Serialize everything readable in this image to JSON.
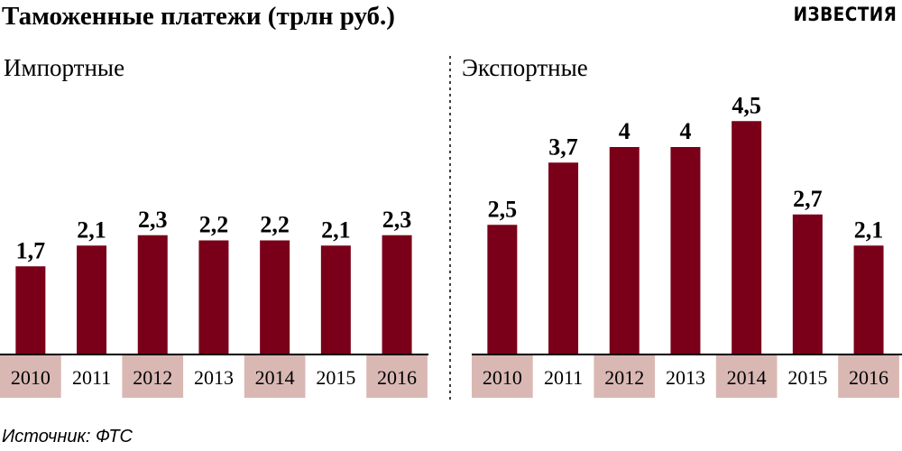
{
  "title": "Таможенные платежи (трлн руб.)",
  "brand": "ИЗВЕСТИЯ",
  "source": "Источник: ФТС",
  "colors": {
    "bar": "#7a0019",
    "highlight": "#d9b8b4",
    "axis": "#000000"
  },
  "chart_data": [
    {
      "type": "bar",
      "panel_title": "Импортные",
      "categories": [
        "2010",
        "2011",
        "2012",
        "2013",
        "2014",
        "2015",
        "2016"
      ],
      "values": [
        1.7,
        2.1,
        2.3,
        2.2,
        2.2,
        2.1,
        2.3
      ],
      "value_labels": [
        "1,7",
        "2,1",
        "2,3",
        "2,2",
        "2,2",
        "2,1",
        "2,3"
      ],
      "highlighted_categories": [
        "2010",
        "2012",
        "2014",
        "2016"
      ]
    },
    {
      "type": "bar",
      "panel_title": "Экспортные",
      "categories": [
        "2010",
        "2011",
        "2012",
        "2013",
        "2014",
        "2015",
        "2016"
      ],
      "values": [
        2.5,
        3.7,
        4.0,
        4.0,
        4.5,
        2.7,
        2.1
      ],
      "value_labels": [
        "2,5",
        "3,7",
        "4",
        "4",
        "4,5",
        "2,7",
        "2,1"
      ],
      "highlighted_categories": [
        "2010",
        "2012",
        "2014",
        "2016"
      ]
    }
  ]
}
